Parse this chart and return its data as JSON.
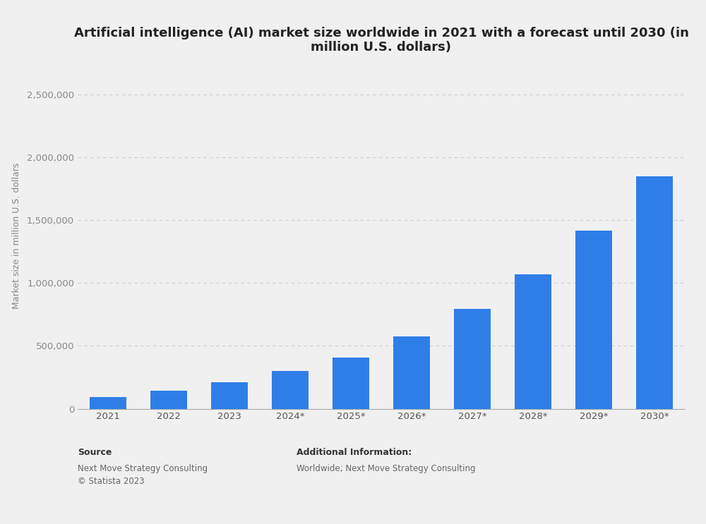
{
  "title": "Artificial intelligence (AI) market size worldwide in 2021 with a forecast until 2030 (in\nmillion U.S. dollars)",
  "categories": [
    "2021",
    "2022",
    "2023",
    "2024*",
    "2025*",
    "2026*",
    "2027*",
    "2028*",
    "2029*",
    "2030*"
  ],
  "values": [
    93500,
    142300,
    207900,
    299640,
    407000,
    575000,
    795000,
    1069000,
    1415500,
    1847000
  ],
  "bar_color": "#2f7ee8",
  "ylabel": "Market size in million U.S. dollars",
  "ylim": [
    0,
    2750000
  ],
  "yticks": [
    0,
    500000,
    1000000,
    1500000,
    2000000,
    2500000
  ],
  "background_color": "#f0f0f0",
  "plot_bg_color": "#f0f0f0",
  "grid_color": "#cccccc",
  "title_fontsize": 13,
  "ylabel_fontsize": 9,
  "tick_fontsize": 9.5,
  "source_label": "Source",
  "source_body": "Next Move Strategy Consulting\n© Statista 2023",
  "additional_label": "Additional Information:",
  "additional_body": "Worldwide; Next Move Strategy Consulting",
  "footer_fontsize": 8.5,
  "footer_label_fontsize": 9
}
